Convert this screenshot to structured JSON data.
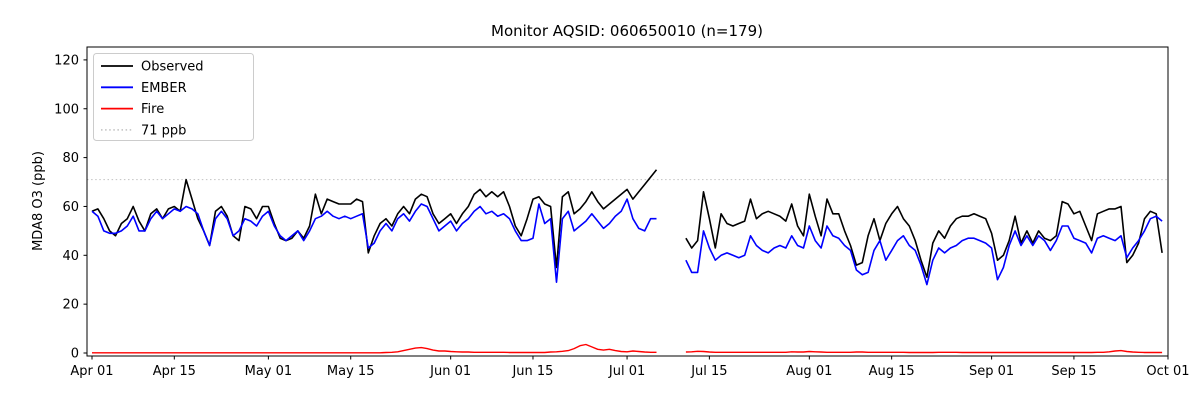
{
  "chart_data": {
    "type": "line",
    "title": "Monitor AQSID: 060650010 (n=179)",
    "xlabel": "",
    "ylabel": "MDA8 O3 (ppb)",
    "yticks": [
      0,
      20,
      40,
      60,
      80,
      100,
      120
    ],
    "ylim": [
      -1.2,
      125.5
    ],
    "x_unit": "days since Apr 01",
    "x_domain_days": 183,
    "xtick_days": [
      0,
      14,
      30,
      44,
      61,
      75,
      91,
      105,
      122,
      136,
      153,
      167,
      183
    ],
    "xtick_labels": [
      "Apr 01",
      "Apr 15",
      "May 01",
      "May 15",
      "Jun 01",
      "Jun 15",
      "Jul 01",
      "Jul 15",
      "Aug 01",
      "Aug 15",
      "Sep 01",
      "Sep 15",
      "Oct 01"
    ],
    "data_gap_note": "no data Jul 07 - Jul 10",
    "reference_line": {
      "label": "71 ppb",
      "value": 71,
      "color": "#c9c9c9",
      "style": "dotted"
    },
    "legend": {
      "position": "upper left",
      "entries": [
        "Observed",
        "EMBER",
        "Fire",
        "71 ppb"
      ]
    },
    "series": [
      {
        "name": "Observed",
        "color": "#000000",
        "width": 1.6,
        "values": [
          58,
          59,
          55,
          50,
          48,
          53,
          55,
          60,
          54,
          50,
          57,
          59,
          55,
          59,
          60,
          58,
          71,
          63,
          55,
          50,
          44,
          58,
          60,
          56,
          48,
          46,
          60,
          59,
          55,
          60,
          60,
          53,
          47,
          46,
          47,
          50,
          47,
          52,
          65,
          57,
          63,
          62,
          61,
          61,
          61,
          63,
          62,
          41,
          48,
          53,
          55,
          52,
          57,
          60,
          57,
          63,
          65,
          64,
          57,
          53,
          55,
          57,
          53,
          57,
          60,
          65,
          67,
          64,
          66,
          64,
          66,
          60,
          52,
          48,
          55,
          63,
          64,
          61,
          60,
          35,
          64,
          66,
          57,
          59,
          62,
          66,
          62,
          59,
          61,
          63,
          65,
          67,
          63,
          66,
          69,
          72,
          75,
          null,
          null,
          null,
          null,
          47,
          43,
          46,
          66,
          55,
          43,
          57,
          53,
          52,
          53,
          54,
          63,
          55,
          57,
          58,
          57,
          56,
          54,
          61,
          52,
          48,
          65,
          56,
          48,
          63,
          57,
          57,
          50,
          44,
          36,
          37,
          48,
          55,
          46,
          53,
          57,
          60,
          55,
          52,
          46,
          38,
          31,
          45,
          50,
          47,
          52,
          55,
          56,
          56,
          57,
          56,
          55,
          49,
          38,
          40,
          46,
          56,
          45,
          50,
          45,
          50,
          47,
          46,
          48,
          62,
          61,
          57,
          58,
          52,
          46,
          57,
          58,
          59,
          59,
          60,
          37,
          40,
          45,
          55,
          58,
          57,
          41
        ]
      },
      {
        "name": "EMBER",
        "color": "#0000ff",
        "width": 1.6,
        "values": [
          58,
          56,
          50,
          49,
          49,
          50,
          52,
          56,
          50,
          50,
          55,
          58,
          55,
          57,
          59,
          58,
          60,
          59,
          57,
          50,
          44,
          55,
          58,
          55,
          48,
          50,
          55,
          54,
          52,
          56,
          58,
          52,
          48,
          46,
          48,
          50,
          46,
          50,
          55,
          56,
          58,
          56,
          55,
          56,
          55,
          56,
          57,
          43,
          45,
          50,
          53,
          50,
          55,
          57,
          54,
          58,
          61,
          60,
          55,
          50,
          52,
          54,
          50,
          53,
          55,
          58,
          60,
          57,
          58,
          56,
          57,
          55,
          50,
          46,
          46,
          47,
          61,
          53,
          55,
          29,
          55,
          58,
          50,
          52,
          54,
          57,
          54,
          51,
          53,
          56,
          58,
          63,
          55,
          51,
          50,
          55,
          55,
          null,
          null,
          null,
          null,
          38,
          33,
          33,
          50,
          43,
          38,
          40,
          41,
          40,
          39,
          40,
          48,
          44,
          42,
          41,
          43,
          44,
          43,
          48,
          44,
          43,
          52,
          46,
          43,
          52,
          48,
          47,
          44,
          42,
          34,
          32,
          33,
          42,
          46,
          38,
          42,
          46,
          48,
          44,
          42,
          36,
          28,
          38,
          43,
          41,
          43,
          44,
          46,
          47,
          47,
          46,
          45,
          43,
          30,
          35,
          44,
          50,
          44,
          48,
          44,
          48,
          46,
          42,
          46,
          52,
          52,
          47,
          46,
          45,
          41,
          47,
          48,
          47,
          46,
          48,
          39,
          43,
          46,
          50,
          55,
          56,
          54
        ]
      },
      {
        "name": "Fire",
        "color": "#ff0000",
        "width": 1.4,
        "values": [
          0.1,
          0.1,
          0.1,
          0.1,
          0.1,
          0.1,
          0.1,
          0.1,
          0.1,
          0.1,
          0.1,
          0.1,
          0.1,
          0.1,
          0.1,
          0.1,
          0.1,
          0.1,
          0.1,
          0.1,
          0.1,
          0.1,
          0.1,
          0.1,
          0.1,
          0.1,
          0.1,
          0.1,
          0.1,
          0.1,
          0.1,
          0.1,
          0.1,
          0.1,
          0.1,
          0.1,
          0.1,
          0.1,
          0.1,
          0.1,
          0.1,
          0.1,
          0.1,
          0.1,
          0.1,
          0.1,
          0.1,
          0.1,
          0.1,
          0.1,
          0.2,
          0.3,
          0.5,
          1,
          1.5,
          2,
          2.2,
          1.8,
          1.2,
          0.8,
          0.8,
          0.6,
          0.5,
          0.4,
          0.4,
          0.3,
          0.3,
          0.3,
          0.3,
          0.3,
          0.3,
          0.2,
          0.2,
          0.2,
          0.2,
          0.2,
          0.2,
          0.2,
          0.4,
          0.5,
          0.7,
          1,
          1.8,
          3,
          3.5,
          2.5,
          1.5,
          1.2,
          1.5,
          1,
          0.6,
          0.5,
          0.8,
          0.6,
          0.4,
          0.3,
          0.3,
          null,
          null,
          null,
          null,
          0.4,
          0.5,
          0.7,
          0.6,
          0.4,
          0.3,
          0.3,
          0.3,
          0.3,
          0.3,
          0.3,
          0.3,
          0.3,
          0.3,
          0.3,
          0.3,
          0.3,
          0.3,
          0.5,
          0.4,
          0.4,
          0.6,
          0.5,
          0.4,
          0.3,
          0.3,
          0.3,
          0.3,
          0.3,
          0.4,
          0.4,
          0.3,
          0.3,
          0.3,
          0.3,
          0.3,
          0.3,
          0.3,
          0.2,
          0.2,
          0.2,
          0.2,
          0.2,
          0.3,
          0.3,
          0.3,
          0.3,
          0.2,
          0.2,
          0.2,
          0.2,
          0.2,
          0.2,
          0.2,
          0.2,
          0.2,
          0.2,
          0.2,
          0.2,
          0.2,
          0.2,
          0.2,
          0.2,
          0.2,
          0.2,
          0.2,
          0.2,
          0.2,
          0.2,
          0.2,
          0.3,
          0.3,
          0.5,
          0.8,
          1,
          0.6,
          0.4,
          0.3,
          0.2,
          0.2,
          0.2,
          0.2
        ]
      }
    ]
  }
}
